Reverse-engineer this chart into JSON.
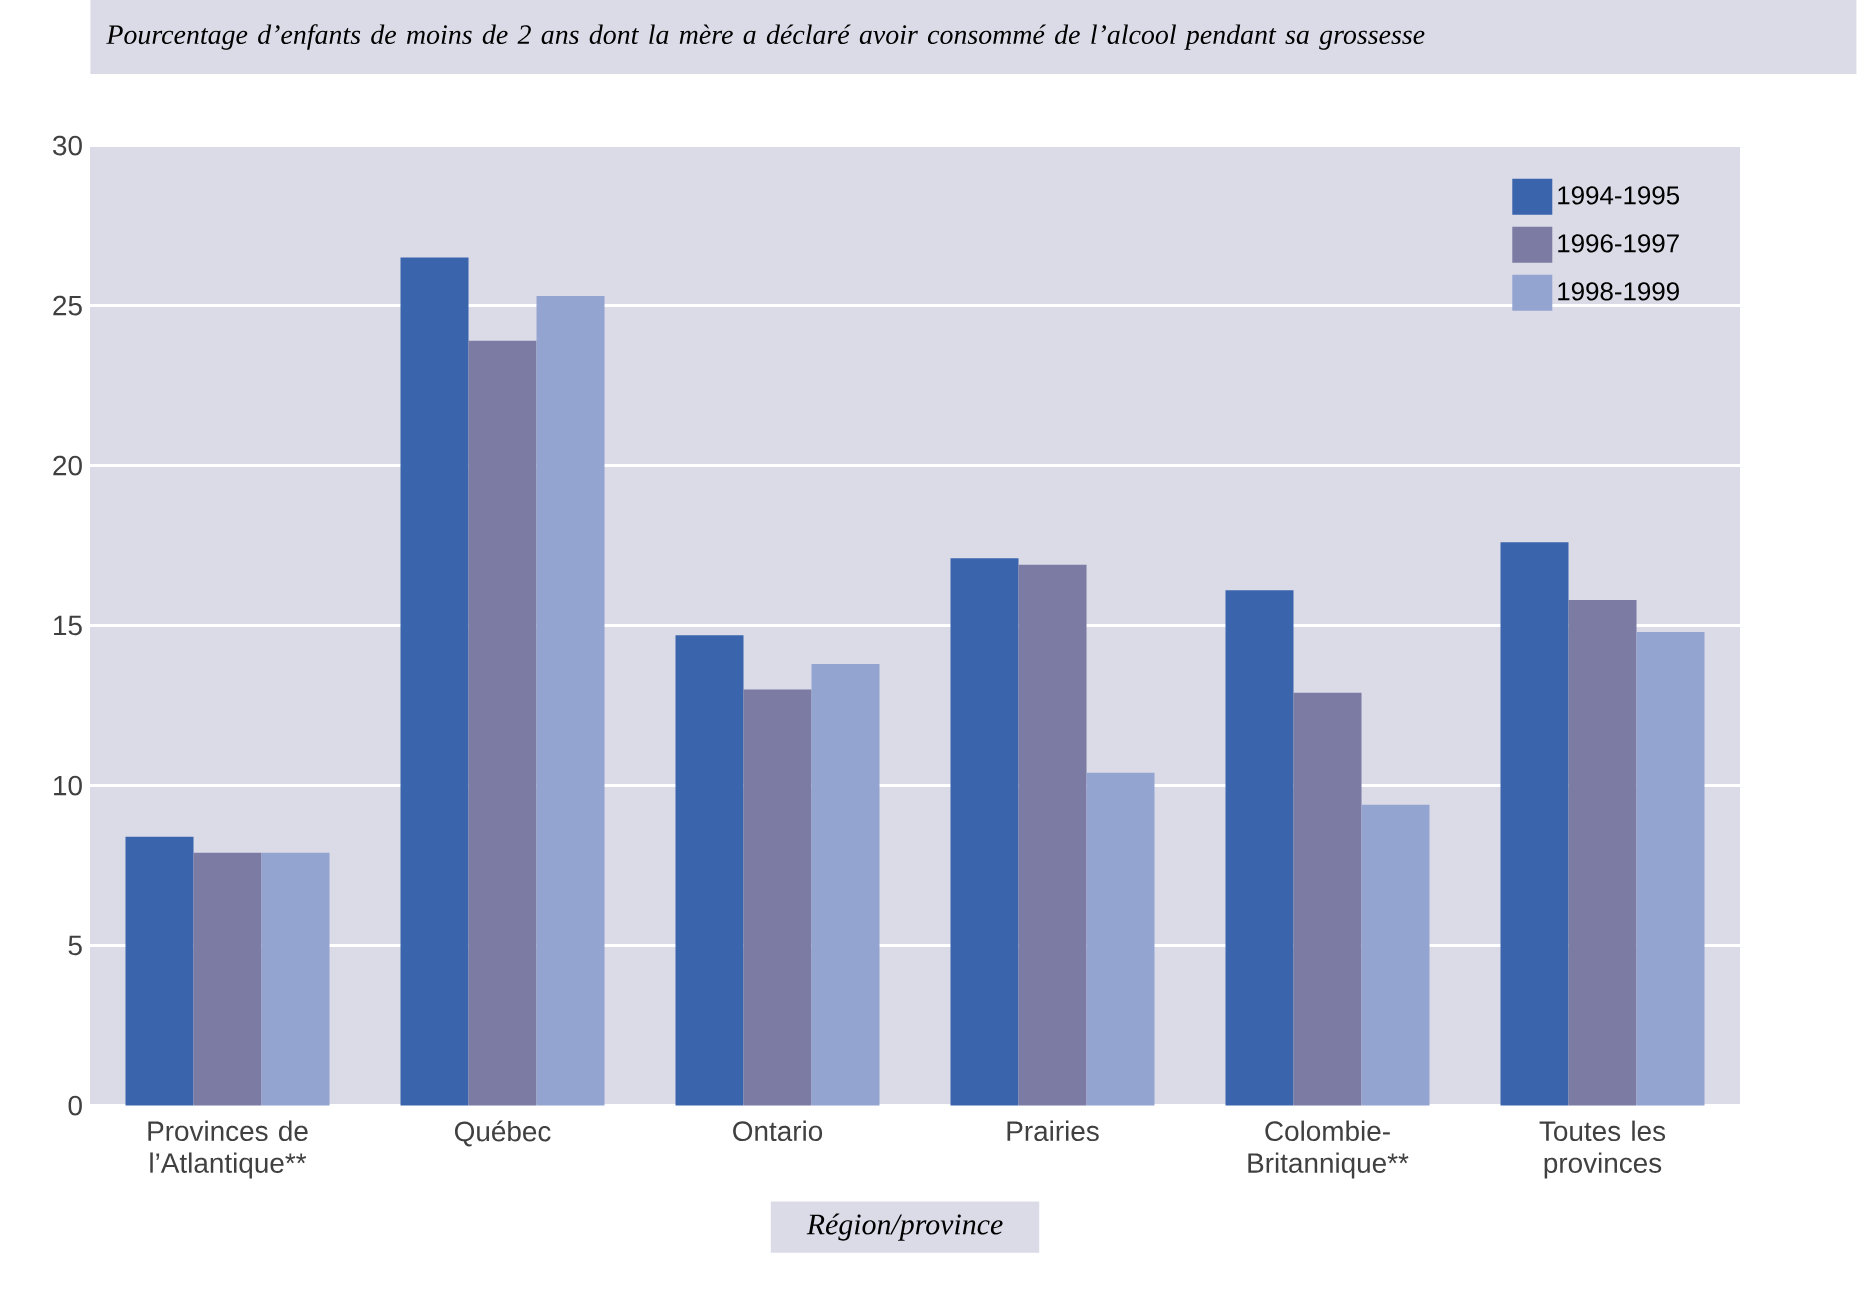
{
  "chart_data": {
    "type": "bar",
    "title": "Pourcentage d’enfants de moins de 2 ans dont la mère a déclaré avoir consommé de l’alcool pendant sa grossesse",
    "xlabel": "Région/province",
    "categories": [
      "Provinces de l’Atlantique**",
      "Québec",
      "Ontario",
      "Prairies",
      "Colombie-Britannique**",
      "Toutes les provinces"
    ],
    "series": [
      {
        "name": "1994-1995",
        "color": "#3a64ac",
        "values": [
          8.4,
          26.5,
          14.7,
          17.1,
          16.1,
          17.6
        ]
      },
      {
        "name": "1996-1997",
        "color": "#7b7ba3",
        "values": [
          7.9,
          23.9,
          13.0,
          16.9,
          12.9,
          15.8
        ]
      },
      {
        "name": "1998-1999",
        "color": "#93a4d0",
        "values": [
          7.9,
          25.3,
          13.8,
          10.4,
          9.4,
          14.8
        ]
      }
    ],
    "ylim": [
      0,
      30
    ],
    "yticks": [
      0,
      5,
      10,
      15,
      20,
      25,
      30
    ],
    "grid": "y",
    "legend": "top right"
  }
}
